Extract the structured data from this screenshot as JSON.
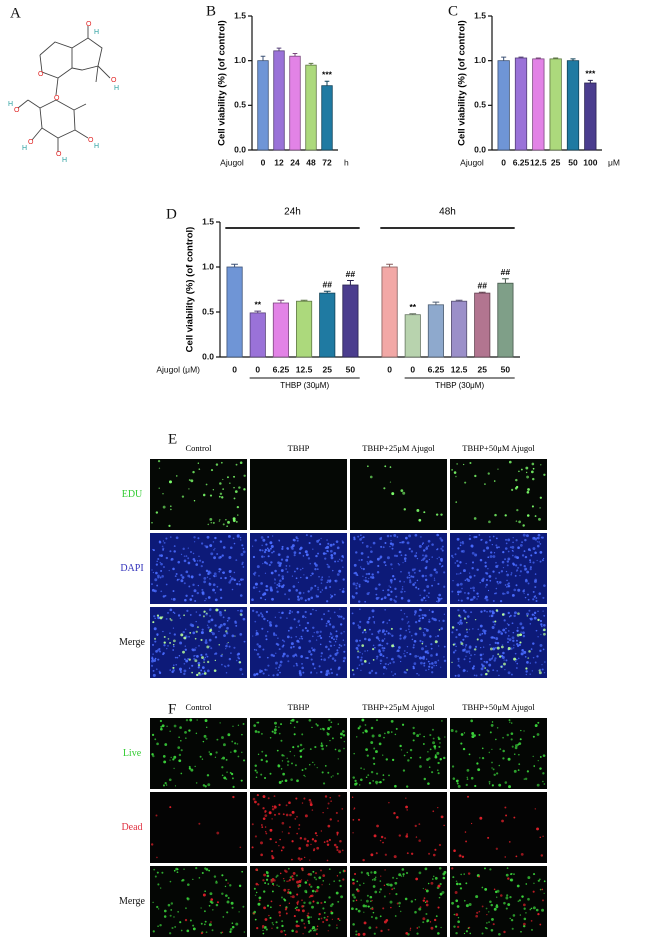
{
  "figure_a": {
    "label": "A",
    "atoms": [
      "O",
      "O",
      "O",
      "O",
      "O",
      "O",
      "O",
      "O",
      "H",
      "H",
      "H",
      "H",
      "H",
      "H"
    ]
  },
  "chart_data": [
    {
      "type": "bar",
      "panel": "B",
      "ylabel": "Cell viability (%) (of control)",
      "x_prefix": "Ajugol",
      "x_unit": "h",
      "categories": [
        "0",
        "12",
        "24",
        "48",
        "72"
      ],
      "values": [
        1.0,
        1.11,
        1.05,
        0.95,
        0.72
      ],
      "errors": [
        0.05,
        0.03,
        0.03,
        0.02,
        0.05
      ],
      "colors": [
        "#6f95d6",
        "#9a72d8",
        "#e283e6",
        "#acd97c",
        "#1f7aa2"
      ],
      "significance": [
        null,
        null,
        null,
        null,
        "***"
      ],
      "ylim": [
        0,
        1.5
      ],
      "yticks": [
        {
          "value": 0,
          "label": "0.0"
        },
        0.5,
        {
          "value": 1,
          "label": "1.0"
        },
        1.5
      ]
    },
    {
      "type": "bar",
      "panel": "C",
      "ylabel": "Cell viability (%) (of control)",
      "x_prefix": "Ajugol",
      "x_unit": "μM",
      "categories": [
        "0",
        "6.25",
        "12.5",
        "25",
        "50",
        "100"
      ],
      "values": [
        1.0,
        1.03,
        1.02,
        1.02,
        1.0,
        0.75
      ],
      "errors": [
        0.04,
        0.01,
        0.01,
        0.01,
        0.02,
        0.03
      ],
      "colors": [
        "#6f95d6",
        "#9a72d8",
        "#e283e6",
        "#acd97c",
        "#1f7aa2",
        "#4b3d8e"
      ],
      "significance": [
        null,
        null,
        null,
        null,
        null,
        "***"
      ],
      "ylim": [
        0,
        1.5
      ],
      "yticks": [
        {
          "value": 0,
          "label": "0.0"
        },
        0.5,
        {
          "value": 1,
          "label": "1.0"
        },
        1.5
      ]
    },
    {
      "type": "grouped-bar",
      "panel": "D",
      "ylabel": "Cell viability (%) (of control)",
      "x_prefix": "Ajugol (μM)",
      "groups": [
        {
          "name": "24h",
          "treatment": "THBP (30μM)"
        },
        {
          "name": "48h",
          "treatment": "THBP (30μM)"
        }
      ],
      "categories": [
        "0",
        "0",
        "6.25",
        "12.5",
        "25",
        "50",
        "0",
        "0",
        "6.25",
        "12.5",
        "25",
        "50"
      ],
      "values": [
        1.0,
        0.49,
        0.6,
        0.62,
        0.71,
        0.8,
        1.0,
        0.47,
        0.58,
        0.62,
        0.71,
        0.82
      ],
      "errors": [
        0.03,
        0.02,
        0.03,
        0.01,
        0.02,
        0.05,
        0.03,
        0.01,
        0.03,
        0.01,
        0.01,
        0.05
      ],
      "colors": [
        "#6f95d6",
        "#9a72d8",
        "#e283e6",
        "#acd97c",
        "#1f7aa2",
        "#4b3d8e",
        "#f2a8a6",
        "#b8d3ae",
        "#8ea9cd",
        "#9b8fc9",
        "#b27590",
        "#7f9f88"
      ],
      "significance": [
        null,
        "**",
        null,
        null,
        "##",
        "##",
        null,
        "**",
        null,
        null,
        "##",
        "##"
      ],
      "ylim": [
        0,
        1.5
      ],
      "yticks": [
        {
          "value": 0,
          "label": "0.0"
        },
        0.5,
        {
          "value": 1,
          "label": "1.0"
        },
        1.5
      ]
    }
  ],
  "figure_e": {
    "label": "E",
    "columns": [
      "Control",
      "TBHP",
      "TBHP+25μM Ajugol",
      "TBHP+50μM Ajugol"
    ],
    "rows": [
      "EDU",
      "DAPI",
      "Merge"
    ]
  },
  "figure_f": {
    "label": "F",
    "columns": [
      "Control",
      "TBHP",
      "TBHP+25μM Ajugol",
      "TBHP+50μM Ajugol"
    ],
    "rows": [
      "Live",
      "Dead",
      "Merge"
    ]
  }
}
